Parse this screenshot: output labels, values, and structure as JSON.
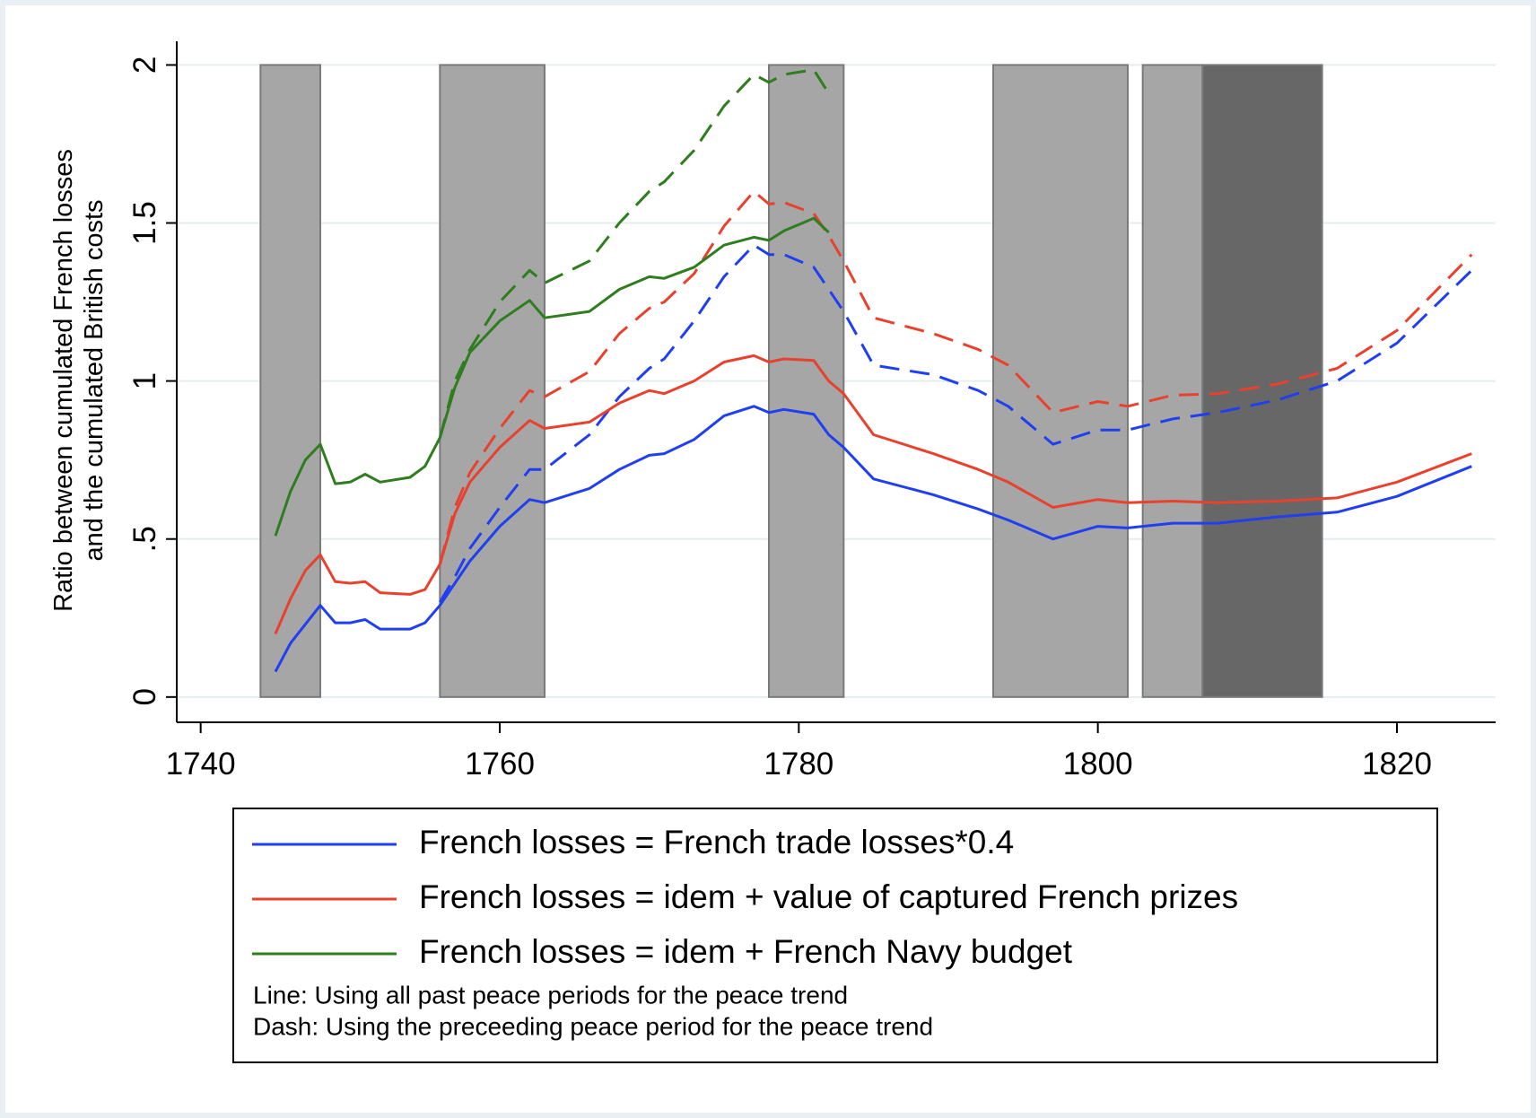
{
  "chart_data": {
    "type": "line",
    "y_title": [
      "Ratio between cumulated French losses",
      "and the cumulated British costs"
    ],
    "xlim": [
      1738.4,
      1826.6
    ],
    "ylim": [
      -0.08,
      2.075
    ],
    "xticks": [
      1740,
      1760,
      1780,
      1800,
      1820
    ],
    "yticks": [
      0,
      {
        "value": 0.5,
        "label": ".5"
      },
      1,
      1.5,
      2
    ],
    "grid": true,
    "shaded_range": [
      0,
      2
    ],
    "shaded_periods": [
      {
        "start": 1744,
        "end": 1748,
        "color": "#a6a6a6"
      },
      {
        "start": 1756,
        "end": 1763,
        "color": "#a6a6a6"
      },
      {
        "start": 1778,
        "end": 1783,
        "color": "#a6a6a6"
      },
      {
        "start": 1793,
        "end": 1802,
        "color": "#a6a6a6"
      },
      {
        "start": 1803,
        "end": 1807,
        "color": "#a6a6a6"
      },
      {
        "start": 1807,
        "end": 1815,
        "color": "#676767"
      }
    ],
    "x": [
      1745,
      1746,
      1747,
      1748,
      1749,
      1750,
      1751,
      1752,
      1754,
      1755,
      1756,
      1757,
      1758,
      1760,
      1762,
      1763,
      1766,
      1768,
      1770,
      1771,
      1773,
      1775,
      1777,
      1778,
      1779,
      1781,
      1782,
      1783,
      1785,
      1789,
      1792,
      1794,
      1797,
      1800,
      1802,
      1805,
      1808,
      1812,
      1816,
      1820,
      1825
    ],
    "series": [
      {
        "name": "French losses = French trade losses*0.4",
        "color": "#1f3ff0",
        "values": [
          0.08,
          0.17,
          0.23,
          0.29,
          0.235,
          0.235,
          0.245,
          0.215,
          0.215,
          0.235,
          0.29,
          0.36,
          0.43,
          0.54,
          0.625,
          0.615,
          0.66,
          0.72,
          0.765,
          0.77,
          0.815,
          0.89,
          0.92,
          0.9,
          0.91,
          0.895,
          0.83,
          0.79,
          0.69,
          0.64,
          0.595,
          0.56,
          0.5,
          0.54,
          0.535,
          0.55,
          0.55,
          0.57,
          0.585,
          0.635,
          0.73
        ],
        "values_dash": [
          null,
          null,
          null,
          null,
          null,
          null,
          null,
          null,
          null,
          null,
          0.3,
          0.38,
          0.47,
          0.6,
          0.72,
          0.72,
          0.83,
          0.95,
          1.04,
          1.07,
          1.19,
          1.33,
          1.43,
          1.4,
          1.4,
          1.36,
          1.29,
          1.22,
          1.05,
          1.02,
          0.97,
          0.92,
          0.8,
          0.845,
          0.845,
          0.88,
          0.9,
          0.94,
          1.0,
          1.12,
          1.35
        ]
      },
      {
        "name": "French losses = idem + value of captured French prizes",
        "color": "#e8412e",
        "values": [
          0.2,
          0.31,
          0.4,
          0.45,
          0.365,
          0.36,
          0.365,
          0.33,
          0.325,
          0.34,
          0.42,
          0.58,
          0.68,
          0.79,
          0.875,
          0.85,
          0.87,
          0.93,
          0.97,
          0.96,
          1.0,
          1.06,
          1.08,
          1.06,
          1.07,
          1.065,
          1.0,
          0.96,
          0.83,
          0.77,
          0.72,
          0.68,
          0.6,
          0.625,
          0.615,
          0.62,
          0.615,
          0.62,
          0.63,
          0.68,
          0.77
        ],
        "values_dash": [
          null,
          null,
          null,
          null,
          null,
          null,
          null,
          null,
          null,
          null,
          0.42,
          0.6,
          0.71,
          0.85,
          0.97,
          0.95,
          1.03,
          1.15,
          1.23,
          1.25,
          1.34,
          1.49,
          1.6,
          1.56,
          1.565,
          1.53,
          1.46,
          1.38,
          1.2,
          1.15,
          1.1,
          1.05,
          0.9,
          0.935,
          0.92,
          0.955,
          0.96,
          0.99,
          1.04,
          1.16,
          1.4
        ]
      },
      {
        "name": "French losses = idem + French Navy budget",
        "color": "#2e7d1e",
        "values": [
          0.51,
          0.65,
          0.75,
          0.8,
          0.675,
          0.68,
          0.705,
          0.68,
          0.695,
          0.73,
          0.82,
          0.98,
          1.09,
          1.19,
          1.255,
          1.2,
          1.22,
          1.29,
          1.33,
          1.325,
          1.36,
          1.43,
          1.455,
          1.445,
          1.475,
          1.515,
          1.47,
          null,
          null,
          null,
          null,
          null,
          null,
          null,
          null,
          null,
          null,
          null,
          null,
          null,
          null
        ],
        "values_dash": [
          null,
          null,
          null,
          null,
          null,
          null,
          null,
          null,
          null,
          null,
          0.82,
          1.0,
          1.1,
          1.25,
          1.35,
          1.31,
          1.38,
          1.5,
          1.6,
          1.63,
          1.73,
          1.87,
          1.97,
          1.945,
          1.97,
          1.985,
          1.91,
          null,
          null,
          null,
          null,
          null,
          null,
          null,
          null,
          null,
          null,
          null,
          null,
          null,
          null
        ]
      }
    ],
    "notes": [
      "Line: Using all past peace periods for the peace trend",
      "Dash: Using the preceeding peace period for the peace trend"
    ]
  }
}
